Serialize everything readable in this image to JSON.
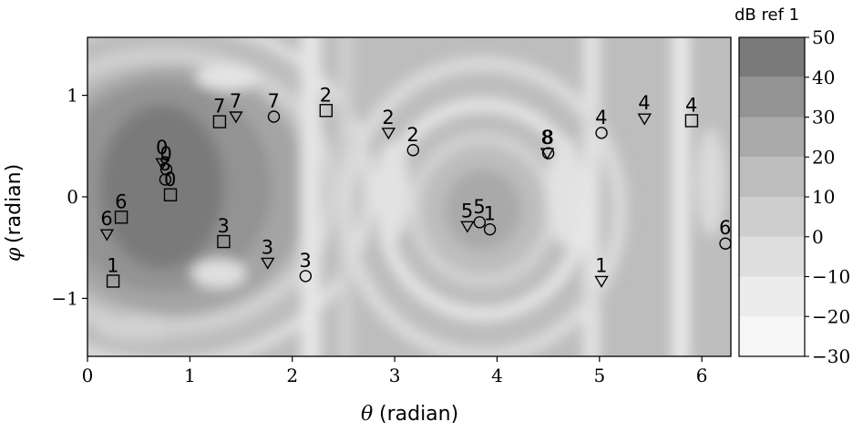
{
  "chart_data": {
    "type": "heatmap",
    "xlabel_symbol": "θ",
    "xlabel_unit": "(radian)",
    "ylabel_symbol": "φ",
    "ylabel_unit": "(radian)",
    "xlim": [
      0,
      6.2832
    ],
    "ylim": [
      -1.5708,
      1.5708
    ],
    "x_ticks": [
      0,
      1,
      2,
      3,
      4,
      5,
      6
    ],
    "x_tick_labels": [
      "0",
      "1",
      "2",
      "3",
      "4",
      "5",
      "6"
    ],
    "y_ticks": [
      -1,
      0,
      1
    ],
    "y_tick_labels": [
      "−1",
      "0",
      "1"
    ],
    "colorbar": {
      "title": "dB ref 1",
      "levels": [
        -30,
        -20,
        -10,
        0,
        10,
        20,
        30,
        40,
        50
      ],
      "tick_labels": [
        "−30",
        "−20",
        "−10",
        "0",
        "10",
        "20",
        "30",
        "40",
        "50"
      ],
      "colors": [
        "#f7f7f7",
        "#ececec",
        "#dedede",
        "#cecece",
        "#bdbdbd",
        "#aaaaaa",
        "#939393",
        "#7a7a7a"
      ]
    },
    "markers": [
      {
        "label": "0",
        "shape": "triangle",
        "x": 0.73,
        "y": 0.33
      },
      {
        "label": "0",
        "shape": "circle",
        "x": 0.77,
        "y": 0.27
      },
      {
        "label": "8",
        "shape": "circle",
        "x": 0.76,
        "y": 0.17
      },
      {
        "label": "0",
        "shape": "square",
        "x": 0.81,
        "y": 0.02
      },
      {
        "label": "6",
        "shape": "square",
        "x": 0.33,
        "y": -0.2
      },
      {
        "label": "6",
        "shape": "triangle",
        "x": 0.19,
        "y": -0.37
      },
      {
        "label": "1",
        "shape": "square",
        "x": 0.25,
        "y": -0.83
      },
      {
        "label": "7",
        "shape": "square",
        "x": 1.29,
        "y": 0.74
      },
      {
        "label": "7",
        "shape": "triangle",
        "x": 1.45,
        "y": 0.79
      },
      {
        "label": "7",
        "shape": "circle",
        "x": 1.82,
        "y": 0.79
      },
      {
        "label": "2",
        "shape": "square",
        "x": 2.33,
        "y": 0.85
      },
      {
        "label": "3",
        "shape": "square",
        "x": 1.33,
        "y": -0.44
      },
      {
        "label": "3",
        "shape": "triangle",
        "x": 1.76,
        "y": -0.65
      },
      {
        "label": "3",
        "shape": "circle",
        "x": 2.13,
        "y": -0.78
      },
      {
        "label": "2",
        "shape": "triangle",
        "x": 2.94,
        "y": 0.63
      },
      {
        "label": "2",
        "shape": "circle",
        "x": 3.18,
        "y": 0.46
      },
      {
        "label": "8",
        "shape": "triangle",
        "x": 4.49,
        "y": 0.43
      },
      {
        "label": "8",
        "shape": "circle",
        "x": 4.5,
        "y": 0.43
      },
      {
        "label": "5",
        "shape": "triangle",
        "x": 3.71,
        "y": -0.29
      },
      {
        "label": "5",
        "shape": "circle",
        "x": 3.83,
        "y": -0.25
      },
      {
        "label": "1",
        "shape": "circle",
        "x": 3.93,
        "y": -0.32
      },
      {
        "label": "4",
        "shape": "circle",
        "x": 5.02,
        "y": 0.63
      },
      {
        "label": "4",
        "shape": "triangle",
        "x": 5.44,
        "y": 0.77
      },
      {
        "label": "4",
        "shape": "square",
        "x": 5.9,
        "y": 0.75
      },
      {
        "label": "1",
        "shape": "triangle",
        "x": 5.02,
        "y": -0.83
      },
      {
        "label": "6",
        "shape": "circle",
        "x": 6.23,
        "y": -0.46
      }
    ]
  }
}
